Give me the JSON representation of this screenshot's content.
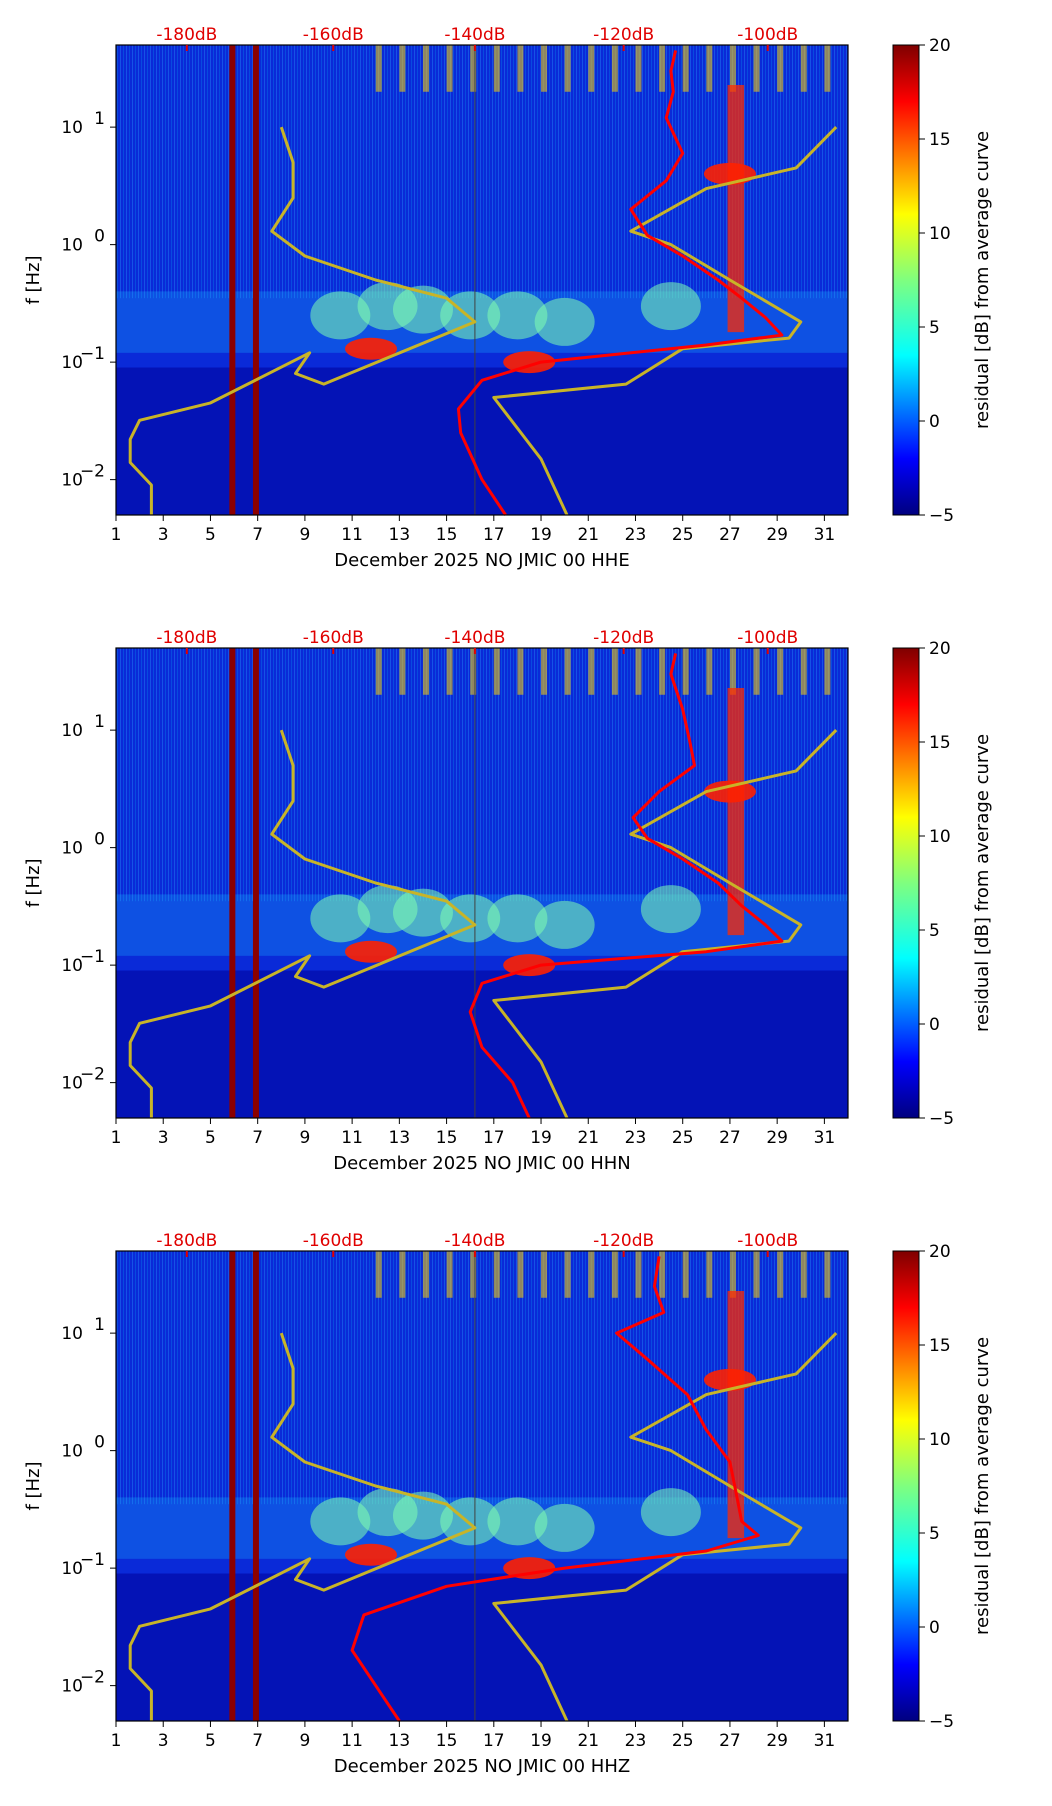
{
  "colors": {
    "model_curves": "#c8b428",
    "median_curve": "#ff0000",
    "db_tick_labels": "#e00000",
    "colormap": "jet"
  },
  "chart_data": [
    {
      "type": "heatmap",
      "xlabel": "December 2025 NO JMIC 00 HHE",
      "ylabel": "f [Hz]",
      "yscale": "log",
      "ylim": [
        0.005,
        50
      ],
      "xlim": [
        1,
        32
      ],
      "x_ticks": [
        "1",
        "3",
        "5",
        "7",
        "9",
        "11",
        "13",
        "15",
        "17",
        "19",
        "21",
        "23",
        "25",
        "27",
        "29",
        "31"
      ],
      "y_ticks": [
        {
          "value": 0.01,
          "base": "10",
          "exp": "−2"
        },
        {
          "value": 0.1,
          "base": "10",
          "exp": "−1"
        },
        {
          "value": 1,
          "base": "10",
          "exp": "0"
        },
        {
          "value": 10,
          "base": "10",
          "exp": "1"
        }
      ],
      "top_axis_ticks": [
        "-180dB",
        "-160dB",
        "-140dB",
        "-120dB",
        "-100dB"
      ],
      "colorbar": {
        "label": "residual [dB] from average curve",
        "ticks": [
          "20",
          "15",
          "10",
          "5",
          "0",
          "−5"
        ],
        "range": [
          -5,
          20
        ]
      },
      "series": [
        {
          "values": [
            [
              8.0,
              10
            ],
            [
              8.5,
              5
            ],
            [
              8.5,
              2.5
            ],
            [
              7.6,
              1.3
            ],
            [
              9,
              0.8
            ],
            [
              12,
              0.5
            ],
            [
              15,
              0.35
            ],
            [
              16.2,
              0.22
            ],
            [
              9.8,
              0.065
            ],
            [
              8.6,
              0.08
            ],
            [
              9.2,
              0.12
            ],
            [
              5,
              0.045
            ],
            [
              2,
              0.032
            ],
            [
              1.6,
              0.022
            ],
            [
              1.6,
              0.014
            ],
            [
              2.5,
              0.009
            ],
            [
              2.5,
              0.005
            ]
          ]
        },
        {
          "values": [
            [
              31.5,
              10
            ],
            [
              29.8,
              4.5
            ],
            [
              26,
              3.0
            ],
            [
              22.8,
              1.3
            ],
            [
              24.5,
              1.0
            ],
            [
              27,
              0.5
            ],
            [
              30,
              0.22
            ],
            [
              29.5,
              0.16
            ],
            [
              25,
              0.13
            ],
            [
              22.6,
              0.065
            ],
            [
              17.0,
              0.05
            ],
            [
              19,
              0.015
            ],
            [
              20.1,
              0.005
            ]
          ]
        },
        {
          "values": [
            [
              24.7,
              45
            ],
            [
              24.5,
              30
            ],
            [
              24.6,
              20
            ],
            [
              24.3,
              12
            ],
            [
              25.0,
              6
            ],
            [
              24.3,
              3.5
            ],
            [
              22.8,
              2.0
            ],
            [
              23.5,
              1.2
            ],
            [
              25,
              0.8
            ],
            [
              26.5,
              0.5
            ],
            [
              27.5,
              0.35
            ],
            [
              28.5,
              0.24
            ],
            [
              29.2,
              0.17
            ],
            [
              26,
              0.14
            ],
            [
              19,
              0.1
            ],
            [
              16.5,
              0.07
            ],
            [
              15.5,
              0.04
            ],
            [
              15.6,
              0.025
            ],
            [
              16.5,
              0.01
            ],
            [
              17.5,
              0.005
            ]
          ]
        }
      ],
      "highlights": [
        {
          "x": [
            11.8,
            0.13
          ],
          "strength": 1.0
        },
        {
          "x": [
            18.5,
            0.1
          ],
          "strength": 1.0
        },
        {
          "x": [
            27.0,
            4.0
          ],
          "strength": 1.0
        }
      ]
    },
    {
      "type": "heatmap",
      "xlabel": "December 2025 NO JMIC 00 HHN",
      "ylabel": "f [Hz]",
      "yscale": "log",
      "ylim": [
        0.005,
        50
      ],
      "xlim": [
        1,
        32
      ],
      "x_ticks": [
        "1",
        "3",
        "5",
        "7",
        "9",
        "11",
        "13",
        "15",
        "17",
        "19",
        "21",
        "23",
        "25",
        "27",
        "29",
        "31"
      ],
      "y_ticks": [
        {
          "value": 0.01,
          "base": "10",
          "exp": "−2"
        },
        {
          "value": 0.1,
          "base": "10",
          "exp": "−1"
        },
        {
          "value": 1,
          "base": "10",
          "exp": "0"
        },
        {
          "value": 10,
          "base": "10",
          "exp": "1"
        }
      ],
      "top_axis_ticks": [
        "-180dB",
        "-160dB",
        "-140dB",
        "-120dB",
        "-100dB"
      ],
      "colorbar": {
        "label": "residual [dB] from average curve",
        "ticks": [
          "20",
          "15",
          "10",
          "5",
          "0",
          "−5"
        ],
        "range": [
          -5,
          20
        ]
      },
      "series": [
        {
          "values": [
            [
              8.0,
              10
            ],
            [
              8.5,
              5
            ],
            [
              8.5,
              2.5
            ],
            [
              7.6,
              1.3
            ],
            [
              9,
              0.8
            ],
            [
              12,
              0.5
            ],
            [
              15,
              0.35
            ],
            [
              16.2,
              0.22
            ],
            [
              9.8,
              0.065
            ],
            [
              8.6,
              0.08
            ],
            [
              9.2,
              0.12
            ],
            [
              5,
              0.045
            ],
            [
              2,
              0.032
            ],
            [
              1.6,
              0.022
            ],
            [
              1.6,
              0.014
            ],
            [
              2.5,
              0.009
            ],
            [
              2.5,
              0.005
            ]
          ]
        },
        {
          "values": [
            [
              31.5,
              10
            ],
            [
              29.8,
              4.5
            ],
            [
              26,
              3.0
            ],
            [
              22.8,
              1.3
            ],
            [
              24.5,
              1.0
            ],
            [
              27,
              0.5
            ],
            [
              30,
              0.22
            ],
            [
              29.5,
              0.16
            ],
            [
              25,
              0.13
            ],
            [
              22.6,
              0.065
            ],
            [
              17.0,
              0.05
            ],
            [
              19,
              0.015
            ],
            [
              20.1,
              0.005
            ]
          ]
        },
        {
          "values": [
            [
              24.7,
              45
            ],
            [
              24.5,
              30
            ],
            [
              25.0,
              15
            ],
            [
              25.3,
              8
            ],
            [
              25.5,
              5
            ],
            [
              24.0,
              3.0
            ],
            [
              22.9,
              1.8
            ],
            [
              23.5,
              1.2
            ],
            [
              25,
              0.8
            ],
            [
              26.5,
              0.5
            ],
            [
              27.5,
              0.32
            ],
            [
              28.5,
              0.22
            ],
            [
              29.2,
              0.16
            ],
            [
              26,
              0.13
            ],
            [
              19,
              0.1
            ],
            [
              16.5,
              0.07
            ],
            [
              16.0,
              0.04
            ],
            [
              16.5,
              0.02
            ],
            [
              17.8,
              0.01
            ],
            [
              18.5,
              0.005
            ]
          ]
        }
      ],
      "highlights": [
        {
          "x": [
            11.8,
            0.13
          ],
          "strength": 1.0
        },
        {
          "x": [
            18.5,
            0.1
          ],
          "strength": 1.0
        },
        {
          "x": [
            27.0,
            3.0
          ],
          "strength": 1.0
        }
      ]
    },
    {
      "type": "heatmap",
      "xlabel": "December 2025 NO JMIC 00 HHZ",
      "ylabel": "f [Hz]",
      "yscale": "log",
      "ylim": [
        0.005,
        50
      ],
      "xlim": [
        1,
        32
      ],
      "x_ticks": [
        "1",
        "3",
        "5",
        "7",
        "9",
        "11",
        "13",
        "15",
        "17",
        "19",
        "21",
        "23",
        "25",
        "27",
        "29",
        "31"
      ],
      "y_ticks": [
        {
          "value": 0.01,
          "base": "10",
          "exp": "−2"
        },
        {
          "value": 0.1,
          "base": "10",
          "exp": "−1"
        },
        {
          "value": 1,
          "base": "10",
          "exp": "0"
        },
        {
          "value": 10,
          "base": "10",
          "exp": "1"
        }
      ],
      "top_axis_ticks": [
        "-180dB",
        "-160dB",
        "-140dB",
        "-120dB",
        "-100dB"
      ],
      "colorbar": {
        "label": "residual [dB] from average curve",
        "ticks": [
          "20",
          "15",
          "10",
          "5",
          "0",
          "−5"
        ],
        "range": [
          -5,
          20
        ]
      },
      "series": [
        {
          "values": [
            [
              8.0,
              10
            ],
            [
              8.5,
              5
            ],
            [
              8.5,
              2.5
            ],
            [
              7.6,
              1.3
            ],
            [
              9,
              0.8
            ],
            [
              12,
              0.5
            ],
            [
              15,
              0.35
            ],
            [
              16.2,
              0.22
            ],
            [
              9.8,
              0.065
            ],
            [
              8.6,
              0.08
            ],
            [
              9.2,
              0.12
            ],
            [
              5,
              0.045
            ],
            [
              2,
              0.032
            ],
            [
              1.6,
              0.022
            ],
            [
              1.6,
              0.014
            ],
            [
              2.5,
              0.009
            ],
            [
              2.5,
              0.005
            ]
          ]
        },
        {
          "values": [
            [
              31.5,
              10
            ],
            [
              29.8,
              4.5
            ],
            [
              26,
              3.0
            ],
            [
              22.8,
              1.3
            ],
            [
              24.5,
              1.0
            ],
            [
              27,
              0.5
            ],
            [
              30,
              0.22
            ],
            [
              29.5,
              0.16
            ],
            [
              25,
              0.13
            ],
            [
              22.6,
              0.065
            ],
            [
              17.0,
              0.05
            ],
            [
              19,
              0.015
            ],
            [
              20.1,
              0.005
            ]
          ]
        },
        {
          "values": [
            [
              24.0,
              45
            ],
            [
              23.8,
              25
            ],
            [
              24.2,
              15
            ],
            [
              22.2,
              10
            ],
            [
              23.5,
              6
            ],
            [
              25.2,
              3.0
            ],
            [
              26,
              1.5
            ],
            [
              27,
              0.8
            ],
            [
              27.3,
              0.4
            ],
            [
              27.5,
              0.25
            ],
            [
              28.2,
              0.19
            ],
            [
              26,
              0.14
            ],
            [
              20,
              0.1
            ],
            [
              15,
              0.07
            ],
            [
              11.5,
              0.04
            ],
            [
              11.0,
              0.02
            ],
            [
              12,
              0.01
            ],
            [
              13,
              0.005
            ]
          ]
        }
      ],
      "highlights": [
        {
          "x": [
            11.8,
            0.13
          ],
          "strength": 1.0
        },
        {
          "x": [
            18.5,
            0.1
          ],
          "strength": 1.0
        },
        {
          "x": [
            27.0,
            4.0
          ],
          "strength": 1.0
        }
      ]
    }
  ]
}
